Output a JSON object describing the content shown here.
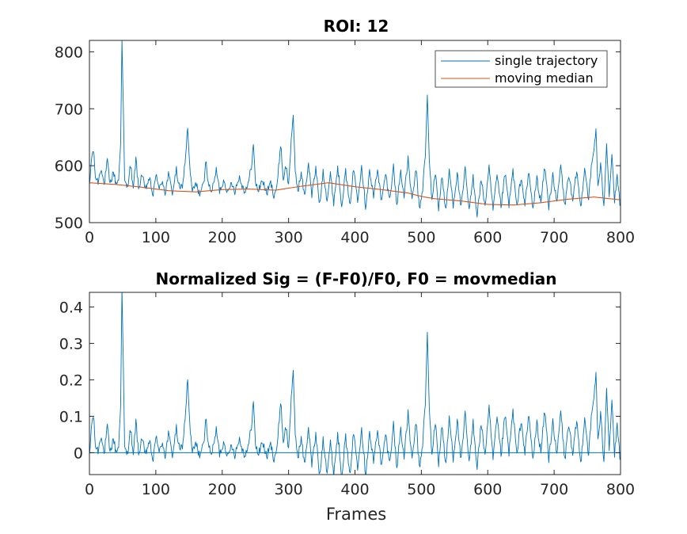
{
  "colors": {
    "trajectory": "#0072BD",
    "median": "#D95319",
    "axis": "#262626",
    "zero_line": "#0072BD"
  },
  "chart_data": [
    {
      "type": "line",
      "title": "ROI: 12",
      "xlabel": "",
      "ylabel": "",
      "xlim": [
        0,
        800
      ],
      "ylim": [
        500,
        820
      ],
      "xticks": [
        0,
        100,
        200,
        300,
        400,
        500,
        600,
        700,
        800
      ],
      "yticks": [
        500,
        600,
        700,
        800
      ],
      "grid": false,
      "legend_position": "top-right",
      "series": [
        {
          "name": "single trajectory",
          "x_step": 1,
          "x_start": 0,
          "anchors": [
            [
              0,
              560
            ],
            [
              3,
              612
            ],
            [
              6,
              628
            ],
            [
              9,
              580
            ],
            [
              13,
              572
            ],
            [
              18,
              598
            ],
            [
              22,
              565
            ],
            [
              27,
              608
            ],
            [
              31,
              566
            ],
            [
              36,
              590
            ],
            [
              40,
              568
            ],
            [
              44,
              576
            ],
            [
              47,
              640
            ],
            [
              49,
              820
            ],
            [
              51,
              706
            ],
            [
              53,
              572
            ],
            [
              57,
              562
            ],
            [
              62,
              602
            ],
            [
              66,
              556
            ],
            [
              70,
              614
            ],
            [
              74,
              558
            ],
            [
              79,
              586
            ],
            [
              84,
              556
            ],
            [
              90,
              578
            ],
            [
              96,
              548
            ],
            [
              101,
              588
            ],
            [
              105,
              556
            ],
            [
              110,
              575
            ],
            [
              114,
              552
            ],
            [
              119,
              584
            ],
            [
              125,
              553
            ],
            [
              131,
              592
            ],
            [
              136,
              556
            ],
            [
              141,
              570
            ],
            [
              145,
              620
            ],
            [
              148,
              668
            ],
            [
              151,
              598
            ],
            [
              155,
              553
            ],
            [
              160,
              568
            ],
            [
              166,
              551
            ],
            [
              172,
              566
            ],
            [
              176,
              612
            ],
            [
              179,
              566
            ],
            [
              185,
              556
            ],
            [
              191,
              592
            ],
            [
              196,
              556
            ],
            [
              203,
              575
            ],
            [
              209,
              550
            ],
            [
              214,
              572
            ],
            [
              219,
              556
            ],
            [
              226,
              580
            ],
            [
              233,
              556
            ],
            [
              239,
              566
            ],
            [
              244,
              600
            ],
            [
              247,
              638
            ],
            [
              250,
              570
            ],
            [
              255,
              556
            ],
            [
              260,
              576
            ],
            [
              267,
              551
            ],
            [
              273,
              570
            ],
            [
              278,
              548
            ],
            [
              283,
              566
            ],
            [
              288,
              640
            ],
            [
              292,
              576
            ],
            [
              296,
              600
            ],
            [
              300,
              565
            ],
            [
              304,
              648
            ],
            [
              307,
              682
            ],
            [
              310,
              592
            ],
            [
              314,
              556
            ],
            [
              319,
              586
            ],
            [
              324,
              546
            ],
            [
              330,
              605
            ],
            [
              335,
              548
            ],
            [
              341,
              595
            ],
            [
              347,
              530
            ],
            [
              352,
              592
            ],
            [
              358,
              540
            ],
            [
              363,
              585
            ],
            [
              368,
              536
            ],
            [
              374,
              598
            ],
            [
              380,
              532
            ],
            [
              386,
              590
            ],
            [
              392,
              528
            ],
            [
              398,
              594
            ],
            [
              404,
              542
            ],
            [
              410,
              600
            ],
            [
              416,
              528
            ],
            [
              422,
              590
            ],
            [
              428,
              545
            ],
            [
              434,
              596
            ],
            [
              440,
              535
            ],
            [
              446,
              586
            ],
            [
              452,
              540
            ],
            [
              458,
              598
            ],
            [
              463,
              530
            ],
            [
              469,
              592
            ],
            [
              474,
              545
            ],
            [
              480,
              612
            ],
            [
              486,
              536
            ],
            [
              492,
              596
            ],
            [
              497,
              522
            ],
            [
              502,
              560
            ],
            [
              506,
              620
            ],
            [
              509,
              724
            ],
            [
              512,
              608
            ],
            [
              516,
              540
            ],
            [
              521,
              588
            ],
            [
              526,
              526
            ],
            [
              531,
              582
            ],
            [
              537,
              520
            ],
            [
              542,
              592
            ],
            [
              548,
              532
            ],
            [
              554,
              586
            ],
            [
              560,
              525
            ],
            [
              566,
              594
            ],
            [
              572,
              520
            ],
            [
              578,
              580
            ],
            [
              584,
              514
            ],
            [
              590,
              575
            ],
            [
              596,
              530
            ],
            [
              602,
              595
            ],
            [
              608,
              522
            ],
            [
              614,
              582
            ],
            [
              620,
              527
            ],
            [
              626,
              586
            ],
            [
              632,
              530
            ],
            [
              638,
              592
            ],
            [
              644,
              525
            ],
            [
              650,
              580
            ],
            [
              656,
              533
            ],
            [
              662,
              588
            ],
            [
              668,
              523
            ],
            [
              674,
              578
            ],
            [
              680,
              535
            ],
            [
              686,
              598
            ],
            [
              692,
              527
            ],
            [
              698,
              586
            ],
            [
              704,
              532
            ],
            [
              710,
              602
            ],
            [
              716,
              528
            ],
            [
              722,
              586
            ],
            [
              728,
              535
            ],
            [
              734,
              592
            ],
            [
              740,
              525
            ],
            [
              746,
              598
            ],
            [
              752,
              540
            ],
            [
              756,
              596
            ],
            [
              760,
              628
            ],
            [
              763,
              666
            ],
            [
              766,
              560
            ],
            [
              770,
              600
            ],
            [
              775,
              530
            ],
            [
              779,
              642
            ],
            [
              783,
              548
            ],
            [
              787,
              620
            ],
            [
              791,
              538
            ],
            [
              795,
              580
            ],
            [
              800,
              525
            ]
          ]
        },
        {
          "name": "moving median",
          "x_step": 1,
          "x_start": 0,
          "anchors": [
            [
              0,
              570
            ],
            [
              40,
              567
            ],
            [
              80,
              562
            ],
            [
              120,
              556
            ],
            [
              160,
              554
            ],
            [
              200,
              558
            ],
            [
              240,
              559
            ],
            [
              280,
              557
            ],
            [
              320,
              564
            ],
            [
              360,
              570
            ],
            [
              400,
              563
            ],
            [
              440,
              558
            ],
            [
              480,
              552
            ],
            [
              500,
              546
            ],
            [
              520,
              542
            ],
            [
              560,
              538
            ],
            [
              600,
              532
            ],
            [
              640,
              531
            ],
            [
              680,
              535
            ],
            [
              720,
              541
            ],
            [
              760,
              545
            ],
            [
              800,
              540
            ]
          ]
        }
      ]
    },
    {
      "type": "line",
      "title": "Normalized Sig = (F-F0)/F0, F0 = movmedian",
      "xlabel": "Frames",
      "ylabel": "",
      "xlim": [
        0,
        800
      ],
      "ylim": [
        -0.06,
        0.44
      ],
      "xticks": [
        0,
        100,
        200,
        300,
        400,
        500,
        600,
        700,
        800
      ],
      "yticks": [
        0,
        0.1,
        0.2,
        0.3,
        0.4
      ],
      "grid": false,
      "reference_line_y": 0,
      "series": [
        {
          "name": "",
          "derived_from": "(single trajectory - moving median) / moving median"
        }
      ]
    }
  ],
  "legend": {
    "items": [
      "single trajectory",
      "moving median"
    ]
  }
}
